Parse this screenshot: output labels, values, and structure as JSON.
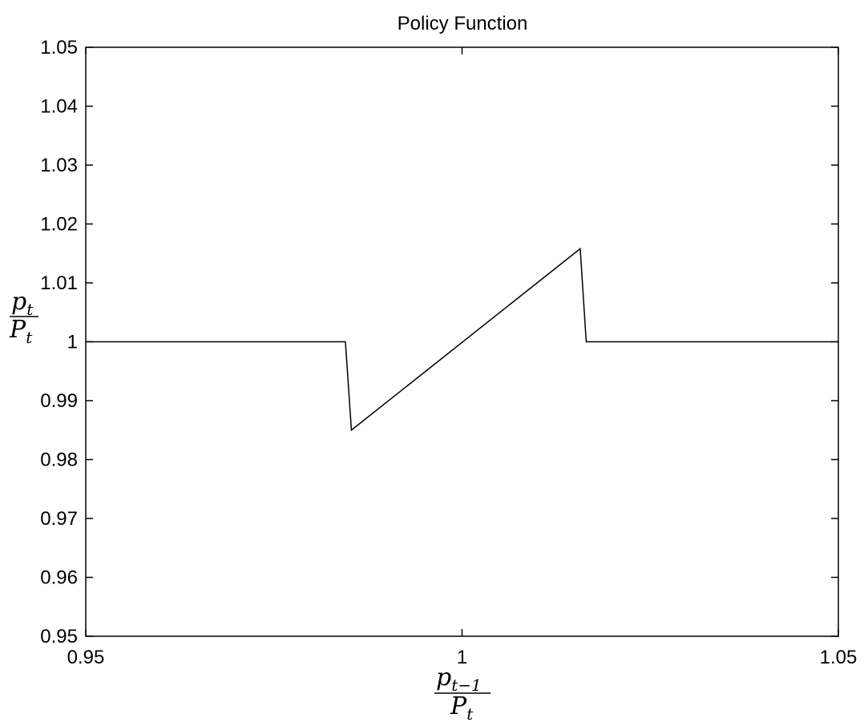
{
  "chart_data": {
    "type": "line",
    "title": "Policy Function",
    "xlabel": {
      "numerator_base": "p",
      "numerator_sub": "t−1",
      "denominator_base": "P",
      "denominator_sub": "t"
    },
    "ylabel": {
      "numerator_base": "p",
      "numerator_sub": "t",
      "denominator_base": "P",
      "denominator_sub": "t"
    },
    "xlim": [
      0.95,
      1.05
    ],
    "ylim": [
      0.95,
      1.05
    ],
    "xticks": [
      0.95,
      1,
      1.05
    ],
    "xtick_labels": [
      "0.95",
      "1",
      "1.05"
    ],
    "yticks": [
      0.95,
      0.96,
      0.97,
      0.98,
      0.99,
      1,
      1.01,
      1.02,
      1.03,
      1.04,
      1.05
    ],
    "ytick_labels": [
      "0.95",
      "0.96",
      "0.97",
      "0.98",
      "0.99",
      "1",
      "1.01",
      "1.02",
      "1.03",
      "1.04",
      "1.05"
    ],
    "grid": false,
    "series": [
      {
        "x": [
          0.95,
          0.9845,
          0.9853,
          1.0157,
          1.0165,
          1.05
        ],
        "y": [
          1.0,
          1.0,
          0.985,
          1.0158,
          1.0,
          1.0
        ]
      }
    ]
  }
}
